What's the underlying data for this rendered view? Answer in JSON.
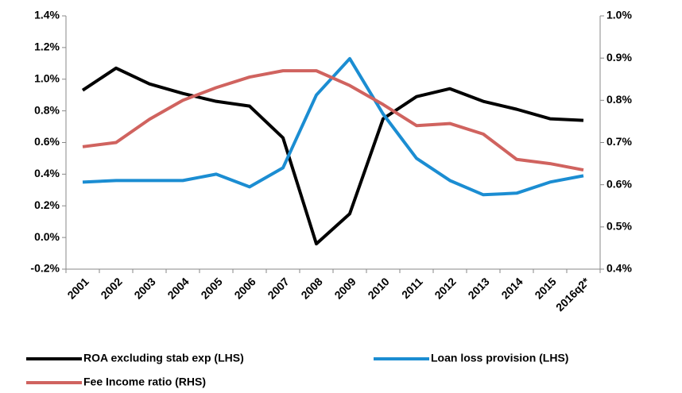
{
  "chart_data": {
    "type": "line",
    "categories": [
      "2001",
      "2002",
      "2003",
      "2004",
      "2005",
      "2006",
      "2007",
      "2008",
      "2009",
      "2010",
      "2011",
      "2012",
      "2013",
      "2014",
      "2015",
      "2016q2*"
    ],
    "series": [
      {
        "name": "ROA excluding stab exp (LHS)",
        "color": "#000000",
        "axis": "y",
        "values": [
          0.93,
          1.07,
          0.97,
          0.91,
          0.86,
          0.83,
          0.63,
          -0.04,
          0.15,
          0.75,
          0.89,
          0.94,
          0.86,
          0.81,
          0.75,
          0.74
        ]
      },
      {
        "name": "Loan loss provision (LHS)",
        "color": "#1b8dd2",
        "axis": "y",
        "values": [
          0.35,
          0.36,
          0.36,
          0.36,
          0.4,
          0.32,
          0.44,
          0.9,
          1.13,
          0.78,
          0.5,
          0.36,
          0.27,
          0.28,
          0.35,
          0.39
        ]
      },
      {
        "name": "Fee Income ratio (RHS)",
        "color": "#d0635f",
        "axis": "y2",
        "values": [
          0.69,
          0.7,
          0.755,
          0.8,
          0.83,
          0.855,
          0.87,
          0.87,
          0.835,
          0.79,
          0.74,
          0.745,
          0.72,
          0.66,
          0.65,
          0.635
        ]
      }
    ],
    "ylim": [
      -0.2,
      1.4
    ],
    "yticks": [
      {
        "value": -0.2,
        "label": "-0.2%"
      },
      {
        "value": 0,
        "label": "0.0%"
      },
      {
        "value": 0.2,
        "label": "0.2%"
      },
      {
        "value": 0.4,
        "label": "0.4%"
      },
      {
        "value": 0.6,
        "label": "0.6%"
      },
      {
        "value": 0.8,
        "label": "0.8%"
      },
      {
        "value": 1.0,
        "label": "1.0%"
      },
      {
        "value": 1.2,
        "label": "1.2%"
      },
      {
        "value": 1.4,
        "label": "1.4%"
      }
    ],
    "y2lim": [
      0.4,
      1.0
    ],
    "y2ticks": [
      {
        "value": 0.4,
        "label": "0.4%"
      },
      {
        "value": 0.5,
        "label": "0.5%"
      },
      {
        "value": 0.6,
        "label": "0.6%"
      },
      {
        "value": 0.7,
        "label": "0.7%"
      },
      {
        "value": 0.8,
        "label": "0.8%"
      },
      {
        "value": 0.9,
        "label": "0.9%"
      },
      {
        "value": 1.0,
        "label": "1.0%"
      }
    ],
    "grid": false
  }
}
